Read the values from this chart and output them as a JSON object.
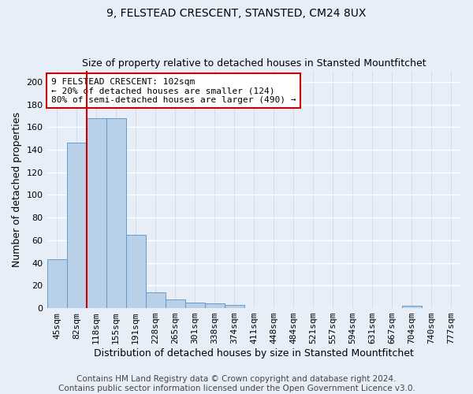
{
  "title": "9, FELSTEAD CRESCENT, STANSTED, CM24 8UX",
  "subtitle": "Size of property relative to detached houses in Stansted Mountfitchet",
  "xlabel": "Distribution of detached houses by size in Stansted Mountfitchet",
  "ylabel": "Number of detached properties",
  "footer_line1": "Contains HM Land Registry data © Crown copyright and database right 2024.",
  "footer_line2": "Contains public sector information licensed under the Open Government Licence v3.0.",
  "bins": [
    "45sqm",
    "82sqm",
    "118sqm",
    "155sqm",
    "191sqm",
    "228sqm",
    "265sqm",
    "301sqm",
    "338sqm",
    "374sqm",
    "411sqm",
    "448sqm",
    "484sqm",
    "521sqm",
    "557sqm",
    "594sqm",
    "631sqm",
    "667sqm",
    "704sqm",
    "740sqm",
    "777sqm"
  ],
  "bar_heights": [
    43,
    146,
    168,
    168,
    65,
    14,
    8,
    5,
    4,
    3,
    0,
    0,
    0,
    0,
    0,
    0,
    0,
    0,
    2,
    0,
    0
  ],
  "bar_color": "#b8d0e8",
  "bar_edge_color": "#6699cc",
  "ylim": [
    0,
    210
  ],
  "yticks": [
    0,
    20,
    40,
    60,
    80,
    100,
    120,
    140,
    160,
    180,
    200
  ],
  "red_line_x": 1.5,
  "annotation_line1": "9 FELSTEAD CRESCENT: 102sqm",
  "annotation_line2": "← 20% of detached houses are smaller (124)",
  "annotation_line3": "80% of semi-detached houses are larger (490) →",
  "annotation_box_color": "#ffffff",
  "annotation_box_edge": "#cc0000",
  "background_color": "#e8eef8",
  "grid_color": "#d0d8e8",
  "title_fontsize": 10,
  "subtitle_fontsize": 9,
  "axis_label_fontsize": 9,
  "tick_fontsize": 8,
  "footer_fontsize": 7.5,
  "annot_fontsize": 8
}
